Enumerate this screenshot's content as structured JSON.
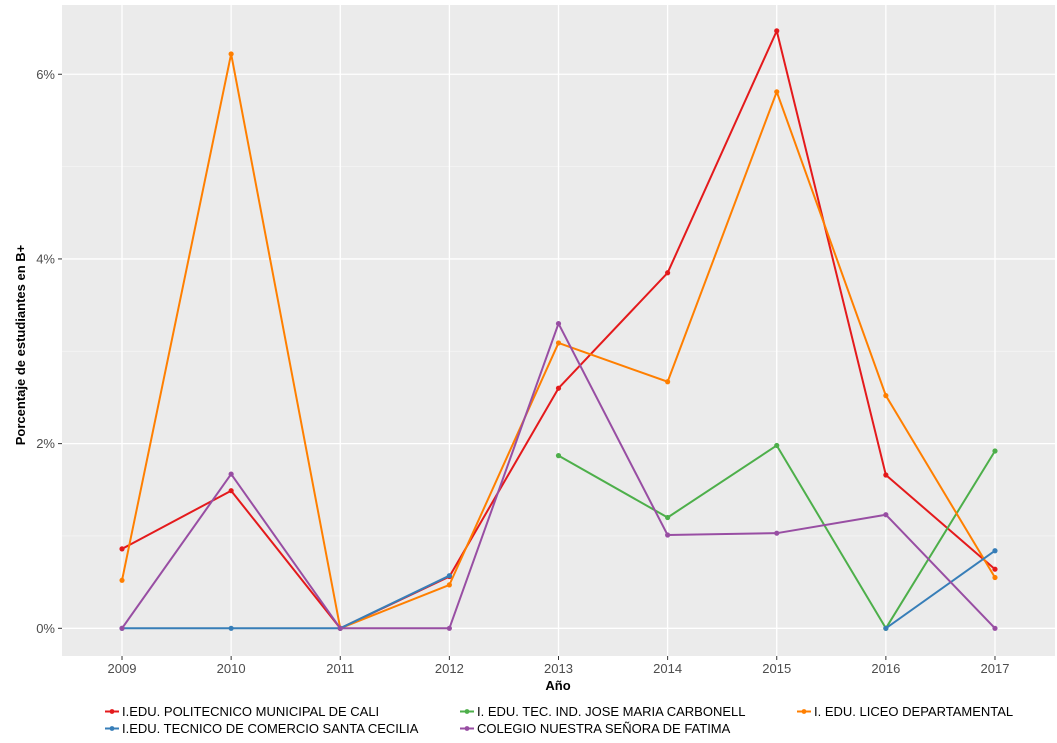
{
  "chart_data": {
    "type": "line",
    "title": "",
    "xlabel": "Año",
    "ylabel": "Porcentaje de estudiantes en B+",
    "x": [
      2009,
      2010,
      2011,
      2012,
      2013,
      2014,
      2015,
      2016,
      2017
    ],
    "x_tick_labels": [
      "2009",
      "2010",
      "2011",
      "2012",
      "2013",
      "2014",
      "2015",
      "2016",
      "2017"
    ],
    "y_ticks": [
      0,
      2,
      4,
      6
    ],
    "y_tick_labels": [
      "0%",
      "2%",
      "4%",
      "6%"
    ],
    "ylim": [
      -0.3,
      6.75
    ],
    "grid": true,
    "legend_position": "bottom",
    "series": [
      {
        "name": "I.EDU. POLITECNICO MUNICIPAL DE CALI",
        "color": "#e41a1c",
        "values": [
          0.86,
          1.49,
          0.0,
          0.56,
          2.6,
          3.85,
          6.47,
          1.66,
          0.64
        ]
      },
      {
        "name": "I. EDU. TEC. IND. JOSE MARIA CARBONELL",
        "color": "#4daf4a",
        "values": [
          null,
          null,
          null,
          null,
          1.87,
          1.2,
          1.98,
          0.0,
          1.92
        ]
      },
      {
        "name": "I. EDU. LICEO DEPARTAMENTAL",
        "color": "#ff7f00",
        "values": [
          0.52,
          6.22,
          0.0,
          0.47,
          3.09,
          2.67,
          5.81,
          2.52,
          0.55
        ]
      },
      {
        "name": "I.EDU. TECNICO DE COMERCIO SANTA CECILIA",
        "color": "#377eb8",
        "values": [
          0.0,
          0.0,
          0.0,
          0.57,
          null,
          null,
          null,
          0.0,
          0.84
        ]
      },
      {
        "name": "COLEGIO NUESTRA SEÑORA DE FATIMA",
        "color": "#984ea3",
        "values": [
          0.0,
          1.67,
          0.0,
          0.0,
          3.3,
          1.01,
          1.03,
          1.23,
          0.0
        ]
      }
    ]
  }
}
